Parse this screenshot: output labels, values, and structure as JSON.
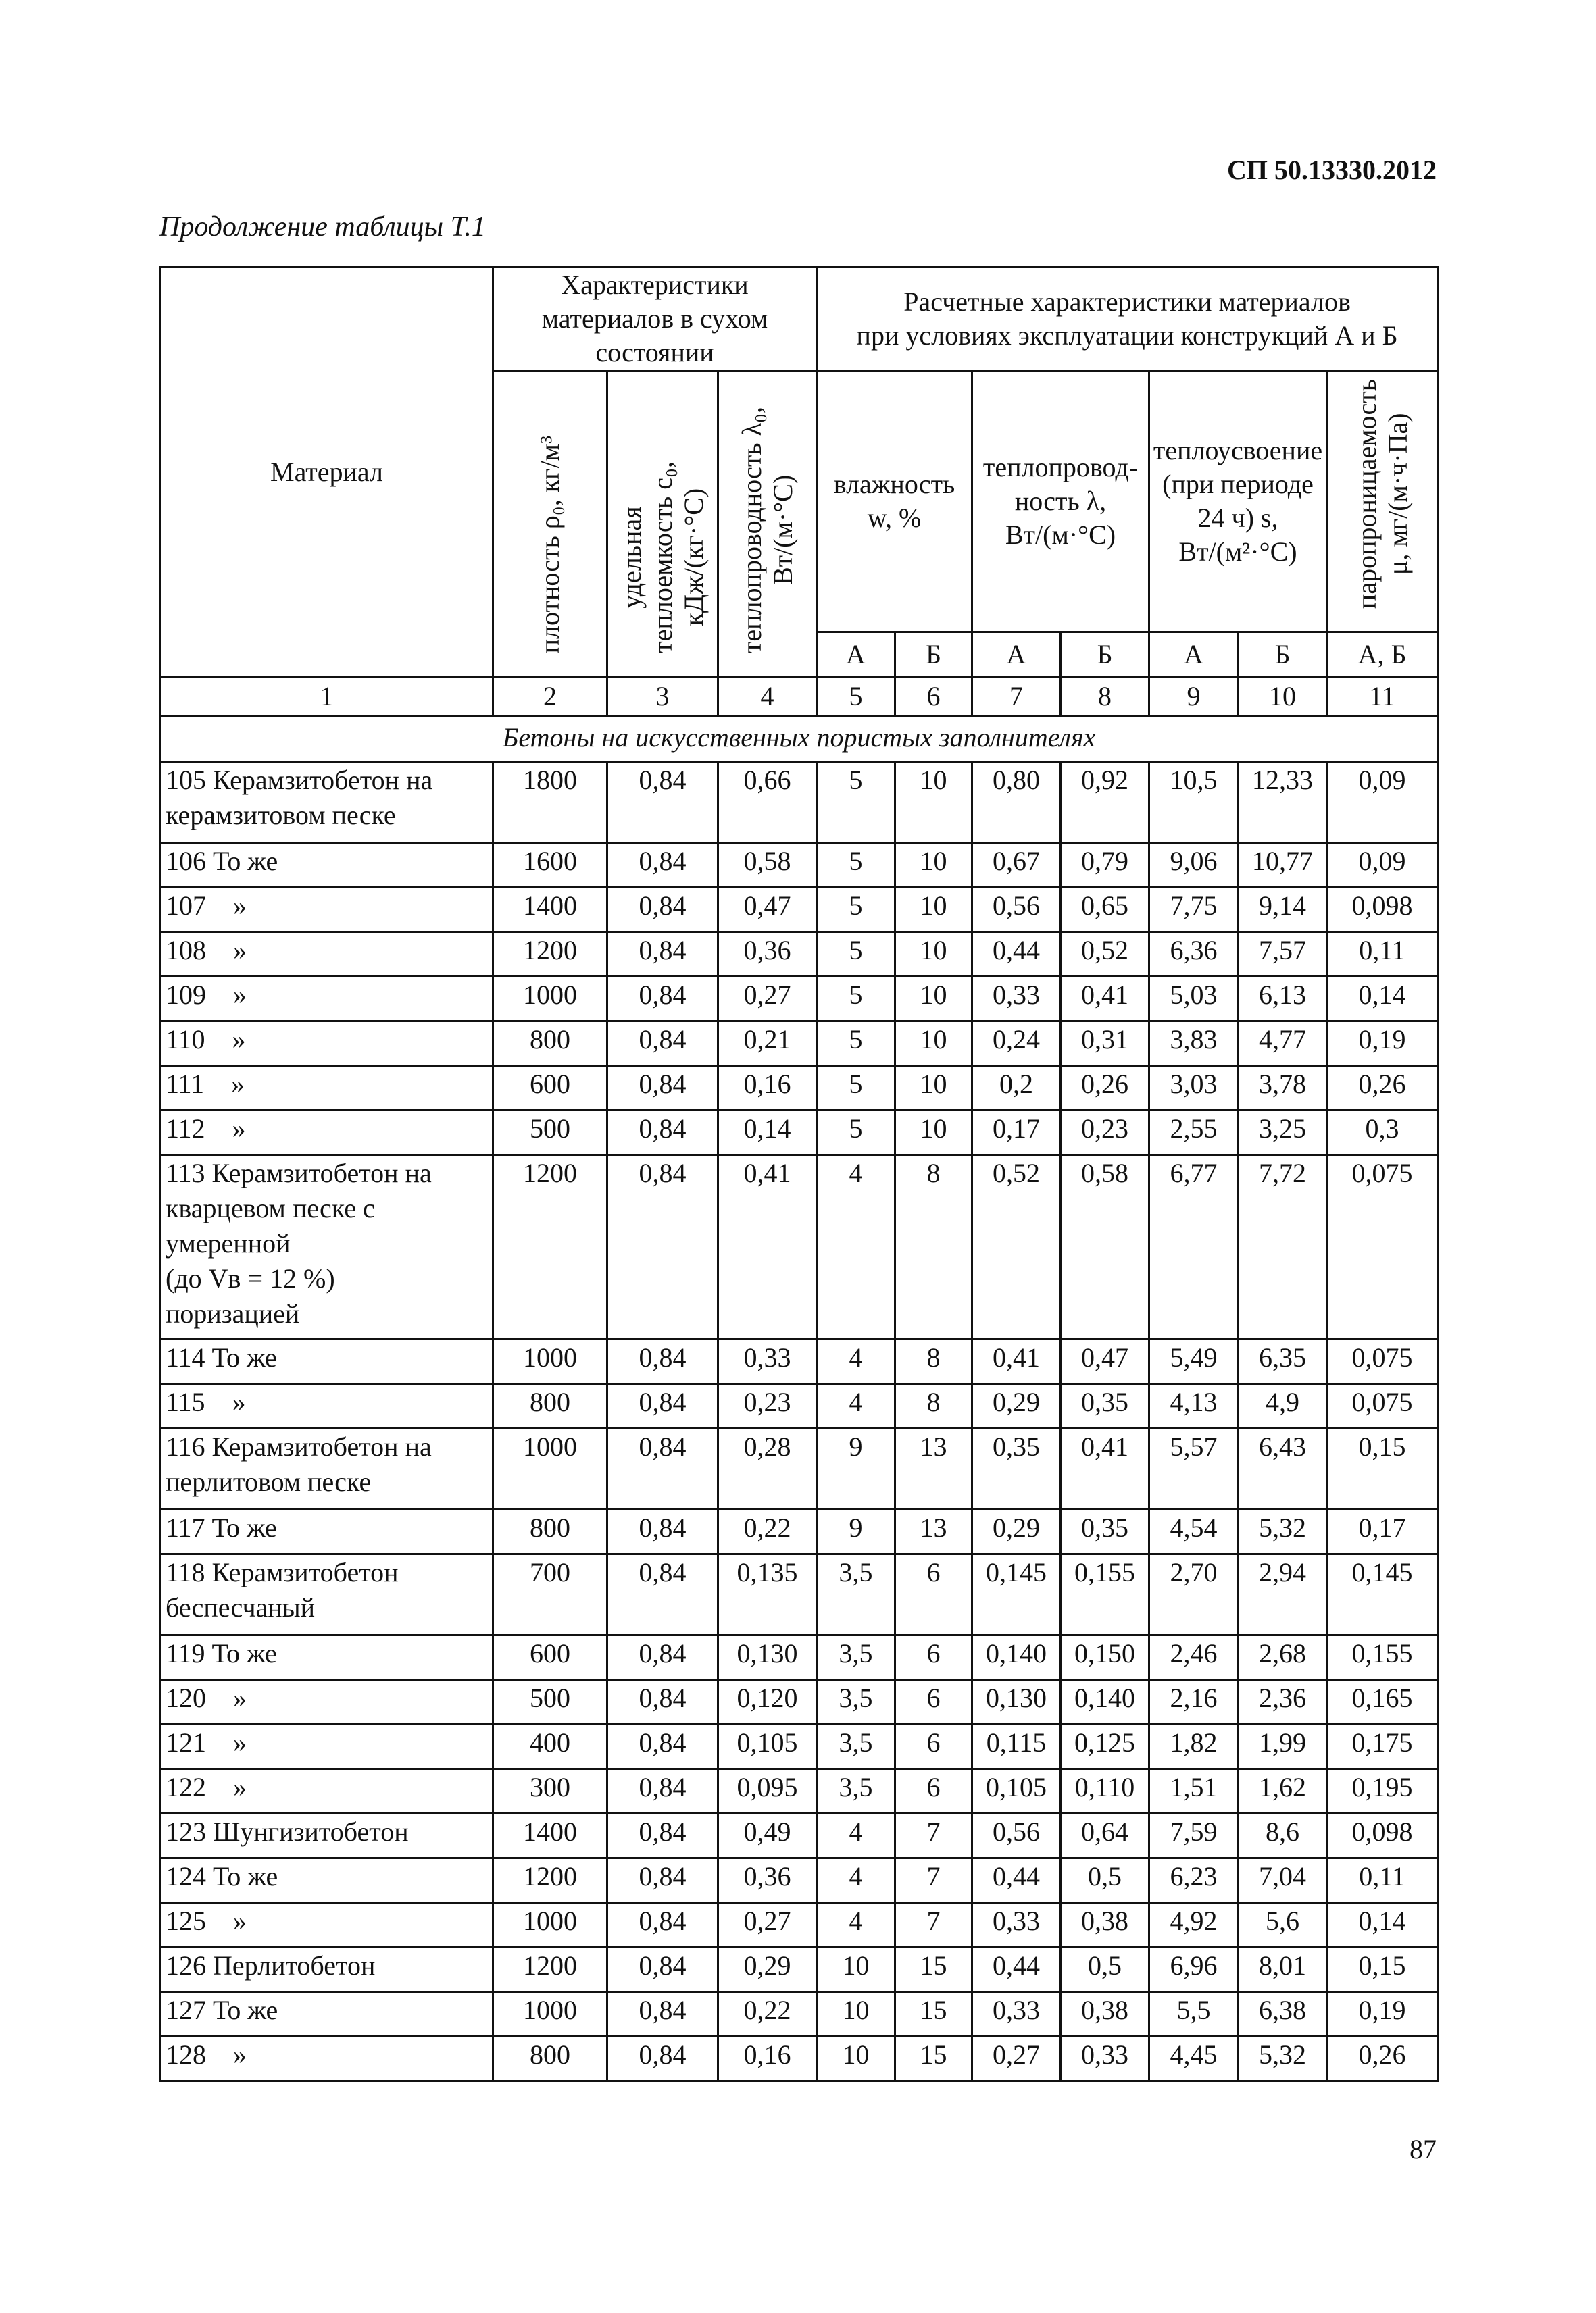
{
  "doc_code": "СП 50.13330.2012",
  "continuation": "Продолжение таблицы Т.1",
  "page_number": "87",
  "header": {
    "material": "Материал",
    "dry_group": [
      "Характеристики",
      "материалов в сухом",
      "состоянии"
    ],
    "design_group": [
      "Расчетные характеристики материалов",
      "при условиях эксплуатации конструкций А и Б"
    ],
    "density": [
      "плотность ρ₀, кг/м³"
    ],
    "heat_capacity": [
      "удельная",
      "теплоемкость c₀,",
      "кДж/(кг·°С)"
    ],
    "conductivity_dry": [
      "теплопроводность λ₀,",
      "Вт/(м·°С)"
    ],
    "humidity": [
      "влажность",
      "w, %"
    ],
    "conductivity": [
      "теплопровод-",
      "ность λ,",
      "Вт/(м·°С)"
    ],
    "heat_absorption": [
      "теплоусвоение",
      "(при периоде",
      "24 ч) s,",
      "Вт/(м²·°С)"
    ],
    "vapor_permeability": [
      "паропроницаемость",
      "μ, мг/(м·ч·Па)"
    ],
    "sub_labels": [
      "А",
      "Б",
      "А",
      "Б",
      "А",
      "Б",
      "А, Б"
    ],
    "column_numbers": [
      "1",
      "2",
      "3",
      "4",
      "5",
      "6",
      "7",
      "8",
      "9",
      "10",
      "11"
    ]
  },
  "section_title": "Бетоны на искусственных пористых заполнителях",
  "rows": [
    {
      "material": [
        "105 Керамзитобетон на",
        "керамзитовом песке"
      ],
      "values": [
        "1800",
        "0,84",
        "0,66",
        "5",
        "10",
        "0,80",
        "0,92",
        "10,5",
        "12,33",
        "0,09"
      ]
    },
    {
      "material": [
        "106 То же"
      ],
      "values": [
        "1600",
        "0,84",
        "0,58",
        "5",
        "10",
        "0,67",
        "0,79",
        "9,06",
        "10,77",
        "0,09"
      ]
    },
    {
      "material": [
        "107    »"
      ],
      "values": [
        "1400",
        "0,84",
        "0,47",
        "5",
        "10",
        "0,56",
        "0,65",
        "7,75",
        "9,14",
        "0,098"
      ]
    },
    {
      "material": [
        "108    »"
      ],
      "values": [
        "1200",
        "0,84",
        "0,36",
        "5",
        "10",
        "0,44",
        "0,52",
        "6,36",
        "7,57",
        "0,11"
      ]
    },
    {
      "material": [
        "109    »"
      ],
      "values": [
        "1000",
        "0,84",
        "0,27",
        "5",
        "10",
        "0,33",
        "0,41",
        "5,03",
        "6,13",
        "0,14"
      ]
    },
    {
      "material": [
        "110    »"
      ],
      "values": [
        "800",
        "0,84",
        "0,21",
        "5",
        "10",
        "0,24",
        "0,31",
        "3,83",
        "4,77",
        "0,19"
      ]
    },
    {
      "material": [
        "111    »"
      ],
      "values": [
        "600",
        "0,84",
        "0,16",
        "5",
        "10",
        "0,2",
        "0,26",
        "3,03",
        "3,78",
        "0,26"
      ]
    },
    {
      "material": [
        "112    »"
      ],
      "values": [
        "500",
        "0,84",
        "0,14",
        "5",
        "10",
        "0,17",
        "0,23",
        "2,55",
        "3,25",
        "0,3"
      ]
    },
    {
      "material": [
        "113 Керамзитобетон на",
        "кварцевом песке с",
        "умеренной",
        "(до Vв = 12 %)",
        "поризацией"
      ],
      "values": [
        "1200",
        "0,84",
        "0,41",
        "4",
        "8",
        "0,52",
        "0,58",
        "6,77",
        "7,72",
        "0,075"
      ]
    },
    {
      "material": [
        "114 То же"
      ],
      "values": [
        "1000",
        "0,84",
        "0,33",
        "4",
        "8",
        "0,41",
        "0,47",
        "5,49",
        "6,35",
        "0,075"
      ]
    },
    {
      "material": [
        "115    »"
      ],
      "values": [
        "800",
        "0,84",
        "0,23",
        "4",
        "8",
        "0,29",
        "0,35",
        "4,13",
        "4,9",
        "0,075"
      ]
    },
    {
      "material": [
        "116 Керамзитобетон на",
        "перлитовом песке"
      ],
      "values": [
        "1000",
        "0,84",
        "0,28",
        "9",
        "13",
        "0,35",
        "0,41",
        "5,57",
        "6,43",
        "0,15"
      ]
    },
    {
      "material": [
        "117 То же"
      ],
      "values": [
        "800",
        "0,84",
        "0,22",
        "9",
        "13",
        "0,29",
        "0,35",
        "4,54",
        "5,32",
        "0,17"
      ]
    },
    {
      "material": [
        "118 Керамзитобетон",
        "беспесчаный"
      ],
      "values": [
        "700",
        "0,84",
        "0,135",
        "3,5",
        "6",
        "0,145",
        "0,155",
        "2,70",
        "2,94",
        "0,145"
      ]
    },
    {
      "material": [
        "119 То же"
      ],
      "values": [
        "600",
        "0,84",
        "0,130",
        "3,5",
        "6",
        "0,140",
        "0,150",
        "2,46",
        "2,68",
        "0,155"
      ]
    },
    {
      "material": [
        "120    »"
      ],
      "values": [
        "500",
        "0,84",
        "0,120",
        "3,5",
        "6",
        "0,130",
        "0,140",
        "2,16",
        "2,36",
        "0,165"
      ]
    },
    {
      "material": [
        "121    »"
      ],
      "values": [
        "400",
        "0,84",
        "0,105",
        "3,5",
        "6",
        "0,115",
        "0,125",
        "1,82",
        "1,99",
        "0,175"
      ]
    },
    {
      "material": [
        "122    »"
      ],
      "values": [
        "300",
        "0,84",
        "0,095",
        "3,5",
        "6",
        "0,105",
        "0,110",
        "1,51",
        "1,62",
        "0,195"
      ]
    },
    {
      "material": [
        "123 Шунгизитобетон"
      ],
      "values": [
        "1400",
        "0,84",
        "0,49",
        "4",
        "7",
        "0,56",
        "0,64",
        "7,59",
        "8,6",
        "0,098"
      ]
    },
    {
      "material": [
        "124 То же"
      ],
      "values": [
        "1200",
        "0,84",
        "0,36",
        "4",
        "7",
        "0,44",
        "0,5",
        "6,23",
        "7,04",
        "0,11"
      ]
    },
    {
      "material": [
        "125    »"
      ],
      "values": [
        "1000",
        "0,84",
        "0,27",
        "4",
        "7",
        "0,33",
        "0,38",
        "4,92",
        "5,6",
        "0,14"
      ]
    },
    {
      "material": [
        "126 Перлитобетон"
      ],
      "values": [
        "1200",
        "0,84",
        "0,29",
        "10",
        "15",
        "0,44",
        "0,5",
        "6,96",
        "8,01",
        "0,15"
      ]
    },
    {
      "material": [
        "127 То же"
      ],
      "values": [
        "1000",
        "0,84",
        "0,22",
        "10",
        "15",
        "0,33",
        "0,38",
        "5,5",
        "6,38",
        "0,19"
      ]
    },
    {
      "material": [
        "128    »"
      ],
      "values": [
        "800",
        "0,84",
        "0,16",
        "10",
        "15",
        "0,27",
        "0,33",
        "4,45",
        "5,32",
        "0,26"
      ]
    }
  ]
}
